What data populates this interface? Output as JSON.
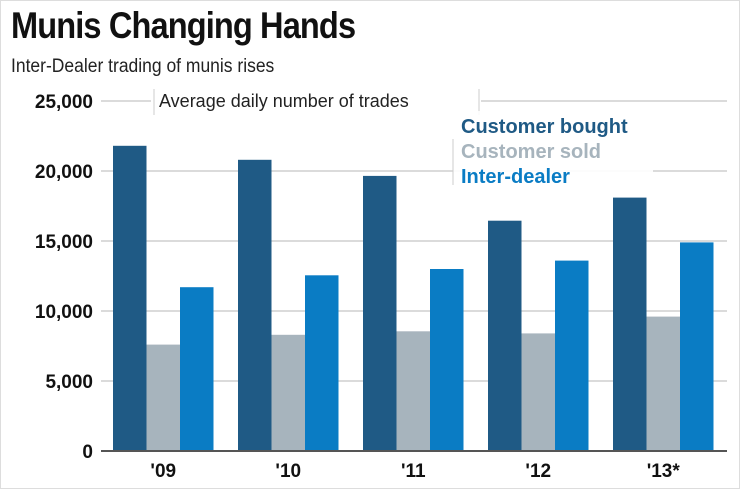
{
  "chart_data": {
    "type": "bar",
    "title": "Munis Changing Hands",
    "subtitle": "Inter-Dealer trading of munis rises",
    "ylabel": "Average daily number of trades",
    "categories": [
      "'09",
      "'10",
      "'11",
      "'12",
      "'13*"
    ],
    "ylim": [
      0,
      25000
    ],
    "yticks": [
      "0",
      "5,000",
      "10,000",
      "15,000",
      "20,000",
      "25,000"
    ],
    "grid": true,
    "legend_placement": "top-right",
    "series": [
      {
        "name": "Customer bought",
        "color": "#1f5a85",
        "values": [
          21800,
          20800,
          19650,
          16450,
          18100
        ]
      },
      {
        "name": "Customer sold",
        "color": "#a7b4bd",
        "values": [
          7600,
          8300,
          8550,
          8400,
          9600
        ]
      },
      {
        "name": "Inter-dealer",
        "color": "#0a7cc4",
        "values": [
          11700,
          12550,
          13000,
          13600,
          14900
        ]
      }
    ]
  }
}
